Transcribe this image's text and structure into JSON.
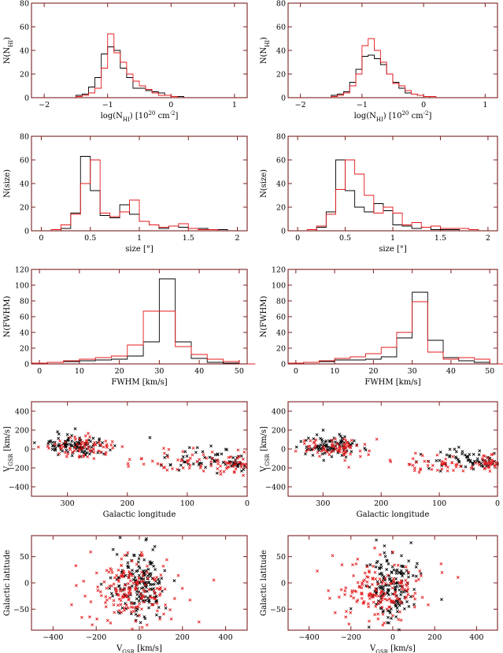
{
  "colors": {
    "frame": "#7a2020",
    "black": "#000000",
    "red": "#e41a1c"
  },
  "panels": [
    {
      "type": "step",
      "xlabel": "log(N",
      "xlabel_sub": "HI",
      "xlabel_tail": ") [10",
      "xlabel_sup": "20",
      "xlabel_end": " cm",
      "xlabel_sup2": "-2",
      "xlabel_close": "]",
      "ylabel": "N(N",
      "ylabel_sub": "HI",
      "ylabel_tail": ")",
      "xlim": [
        -2.2,
        1.2
      ],
      "ylim": [
        0,
        80
      ],
      "xticks": [
        -2,
        -1,
        0,
        1
      ],
      "yticks": [
        0,
        20,
        40,
        60,
        80
      ],
      "xticklabels": [
        "−2",
        "−1",
        "0",
        "1"
      ],
      "yticklabels": [
        "0",
        "20",
        "40",
        "60",
        "80"
      ],
      "bin0": -1.6,
      "binw": 0.1,
      "black": [
        0,
        2,
        3,
        9,
        17,
        37,
        43,
        40,
        25,
        17,
        8,
        8,
        6,
        5,
        4,
        2,
        1,
        1,
        0,
        0
      ],
      "red": [
        0,
        1,
        2,
        4,
        8,
        25,
        54,
        38,
        30,
        20,
        14,
        10,
        7,
        4,
        2,
        2,
        1,
        0,
        0,
        0
      ]
    },
    {
      "type": "step",
      "xlabel": "log(N",
      "xlabel_sub": "HI",
      "xlabel_tail": ") [10",
      "xlabel_sup": "20",
      "xlabel_end": " cm",
      "xlabel_sup2": "-2",
      "xlabel_close": "]",
      "ylabel": "N(N",
      "ylabel_sub": "HI",
      "ylabel_tail": ")",
      "xlim": [
        -2.2,
        1.2
      ],
      "ylim": [
        0,
        80
      ],
      "xticks": [
        -2,
        -1,
        0,
        1
      ],
      "yticks": [
        0,
        20,
        40,
        60,
        80
      ],
      "xticklabels": [
        "−2",
        "−1",
        "0",
        "1"
      ],
      "yticklabels": [
        "0",
        "20",
        "40",
        "60",
        "80"
      ],
      "bin0": -1.6,
      "binw": 0.1,
      "black": [
        0,
        2,
        3,
        5,
        13,
        24,
        35,
        36,
        33,
        28,
        20,
        13,
        8,
        4,
        3,
        2,
        1,
        0,
        0,
        0
      ],
      "red": [
        0,
        1,
        2,
        4,
        10,
        20,
        44,
        50,
        40,
        30,
        20,
        12,
        10,
        6,
        3,
        2,
        1,
        1,
        0,
        0
      ]
    },
    {
      "type": "step",
      "xlabel": "size [°]",
      "ylabel": "N(size)",
      "xlim": [
        -0.1,
        2.1
      ],
      "ylim": [
        0,
        80
      ],
      "xticks": [
        0,
        0.5,
        1,
        1.5,
        2
      ],
      "yticks": [
        0,
        20,
        40,
        60,
        80
      ],
      "xticklabels": [
        "0",
        "0.5",
        "1",
        "1.5",
        "2"
      ],
      "yticklabels": [
        "0",
        "20",
        "40",
        "60",
        "80"
      ],
      "bin0": 0.1,
      "binw": 0.1,
      "black": [
        0,
        2,
        15,
        63,
        34,
        13,
        11,
        22,
        14,
        8,
        5,
        2,
        4,
        3,
        2,
        2,
        1,
        1,
        0,
        0
      ],
      "red": [
        1,
        5,
        14,
        40,
        60,
        15,
        12,
        16,
        26,
        8,
        5,
        3,
        4,
        6,
        2,
        1,
        1,
        0,
        0,
        0
      ]
    },
    {
      "type": "step",
      "xlabel": "size [°]",
      "ylabel": "N(size)",
      "xlim": [
        -0.1,
        2.1
      ],
      "ylim": [
        0,
        80
      ],
      "xticks": [
        0,
        0.5,
        1,
        1.5,
        2
      ],
      "yticks": [
        0,
        20,
        40,
        60,
        80
      ],
      "xticklabels": [
        "0",
        "0.5",
        "1",
        "1.5",
        "2"
      ],
      "yticklabels": [
        "0",
        "20",
        "40",
        "60",
        "80"
      ],
      "bin0": 0.1,
      "binw": 0.1,
      "black": [
        0,
        3,
        16,
        60,
        34,
        20,
        16,
        23,
        17,
        5,
        4,
        2,
        3,
        1,
        1,
        1,
        0,
        0,
        0,
        0
      ],
      "red": [
        1,
        4,
        14,
        35,
        60,
        48,
        30,
        15,
        20,
        15,
        5,
        7,
        3,
        4,
        2,
        2,
        2,
        1,
        0,
        0
      ]
    },
    {
      "type": "step",
      "xlabel": "FWHM [km/s]",
      "ylabel": "N(FWHM)",
      "xlim": [
        -2,
        52
      ],
      "ylim": [
        0,
        120
      ],
      "xticks": [
        0,
        10,
        20,
        30,
        40,
        50
      ],
      "yticks": [
        0,
        20,
        40,
        60,
        80,
        100,
        120
      ],
      "xticklabels": [
        "0",
        "10",
        "20",
        "30",
        "40",
        "50"
      ],
      "yticklabels": [
        "0",
        "20",
        "40",
        "60",
        "80",
        "100",
        "120"
      ],
      "bin0": -2,
      "binw": 4,
      "black": [
        1,
        2,
        3,
        4,
        5,
        6,
        10,
        28,
        108,
        28,
        7,
        2,
        1,
        0
      ],
      "red": [
        1,
        2,
        4,
        6,
        8,
        10,
        24,
        67,
        67,
        22,
        12,
        6,
        3,
        0
      ]
    },
    {
      "type": "step",
      "xlabel": "FWHM [km/s]",
      "ylabel": "N(FWHM)",
      "xlim": [
        -2,
        52
      ],
      "ylim": [
        0,
        120
      ],
      "xticks": [
        0,
        10,
        20,
        30,
        40,
        50
      ],
      "yticks": [
        0,
        20,
        40,
        60,
        80,
        100,
        120
      ],
      "xticklabels": [
        "0",
        "10",
        "20",
        "30",
        "40",
        "50"
      ],
      "yticklabels": [
        "0",
        "20",
        "40",
        "60",
        "80",
        "100",
        "120"
      ],
      "bin0": -2,
      "binw": 4,
      "black": [
        1,
        2,
        3,
        5,
        5,
        6,
        9,
        33,
        91,
        30,
        8,
        4,
        2,
        0
      ],
      "red": [
        1,
        2,
        4,
        7,
        9,
        13,
        21,
        40,
        79,
        15,
        6,
        8,
        6,
        0
      ]
    },
    {
      "type": "scatter",
      "xlabel": "Galactic longitude",
      "ylabel": "V",
      "ylabel_sub": "GSR",
      "ylabel_tail": " [km/s]",
      "xlim": [
        360,
        0
      ],
      "ylim": [
        -500,
        500
      ],
      "xticks": [
        300,
        200,
        100,
        0
      ],
      "yticks": [
        -400,
        -200,
        0,
        200,
        400
      ],
      "xticklabels": [
        "300",
        "200",
        "100",
        "0"
      ],
      "yticklabels": [
        "−400",
        "−200",
        "0",
        "200",
        "400"
      ],
      "seed": 11,
      "clusters": [
        {
          "xc": 285,
          "xs": 30,
          "yc": 40,
          "ys": 55,
          "n": 110,
          "c": "black"
        },
        {
          "xc": 280,
          "xs": 32,
          "yc": 20,
          "ys": 65,
          "n": 70,
          "c": "red"
        },
        {
          "xc": 75,
          "xs": 40,
          "yc": -110,
          "ys": 70,
          "n": 45,
          "c": "black"
        },
        {
          "xc": 95,
          "xs": 50,
          "yc": -130,
          "ys": 60,
          "n": 55,
          "c": "red"
        },
        {
          "xc": 20,
          "xs": 12,
          "yc": -150,
          "ys": 45,
          "n": 25,
          "c": "black"
        },
        {
          "xc": 20,
          "xs": 12,
          "yc": -160,
          "ys": 50,
          "n": 30,
          "c": "red"
        }
      ]
    },
    {
      "type": "scatter",
      "xlabel": "Galactic longitude",
      "ylabel": "V",
      "ylabel_sub": "GSR",
      "ylabel_tail": " [km/s]",
      "xlim": [
        360,
        0
      ],
      "ylim": [
        -500,
        500
      ],
      "xticks": [
        300,
        200,
        100,
        0
      ],
      "yticks": [
        -400,
        -200,
        0,
        200,
        400
      ],
      "xticklabels": [
        "300",
        "200",
        "100",
        "0"
      ],
      "yticklabels": [
        "−400",
        "−200",
        "0",
        "200",
        "400"
      ],
      "seed": 23,
      "clusters": [
        {
          "xc": 285,
          "xs": 28,
          "yc": 40,
          "ys": 55,
          "n": 95,
          "c": "black"
        },
        {
          "xc": 275,
          "xs": 30,
          "yc": 20,
          "ys": 60,
          "n": 70,
          "c": "red"
        },
        {
          "xc": 70,
          "xs": 40,
          "yc": -100,
          "ys": 65,
          "n": 45,
          "c": "black"
        },
        {
          "xc": 100,
          "xs": 50,
          "yc": -150,
          "ys": 55,
          "n": 55,
          "c": "red"
        },
        {
          "xc": 20,
          "xs": 12,
          "yc": -140,
          "ys": 40,
          "n": 25,
          "c": "black"
        },
        {
          "xc": 15,
          "xs": 10,
          "yc": -160,
          "ys": 40,
          "n": 30,
          "c": "red"
        }
      ]
    },
    {
      "type": "scatter",
      "xlabel": "V",
      "xlabel_sub": "GSR",
      "xlabel_tail": " [km/s]",
      "ylabel": "Galactic latitude",
      "xlim": [
        -500,
        500
      ],
      "ylim": [
        -90,
        90
      ],
      "xticks": [
        -400,
        -200,
        0,
        200,
        400
      ],
      "yticks": [
        -50,
        0,
        50
      ],
      "xticklabels": [
        "−400",
        "−200",
        "0",
        "200",
        "400"
      ],
      "yticklabels": [
        "−50",
        "0",
        "50"
      ],
      "seed": 37,
      "clusters": [
        {
          "xc": 0,
          "xs": 60,
          "yc": -5,
          "ys": 32,
          "n": 170,
          "c": "black"
        },
        {
          "xc": -50,
          "xs": 110,
          "yc": -15,
          "ys": 30,
          "n": 180,
          "c": "red"
        }
      ]
    },
    {
      "type": "scatter",
      "xlabel": "V",
      "xlabel_sub": "GSR",
      "xlabel_tail": " [km/s]",
      "ylabel": "Galactic latitude",
      "xlim": [
        -500,
        500
      ],
      "ylim": [
        -90,
        90
      ],
      "xticks": [
        -400,
        -200,
        0,
        200,
        400
      ],
      "yticks": [
        -50,
        0,
        50
      ],
      "xticklabels": [
        "−400",
        "−200",
        "0",
        "200",
        "400"
      ],
      "yticklabels": [
        "−50",
        "0",
        "50"
      ],
      "seed": 53,
      "clusters": [
        {
          "xc": 0,
          "xs": 60,
          "yc": -5,
          "ys": 30,
          "n": 160,
          "c": "black"
        },
        {
          "xc": -60,
          "xs": 110,
          "yc": -15,
          "ys": 30,
          "n": 170,
          "c": "red"
        }
      ]
    }
  ]
}
